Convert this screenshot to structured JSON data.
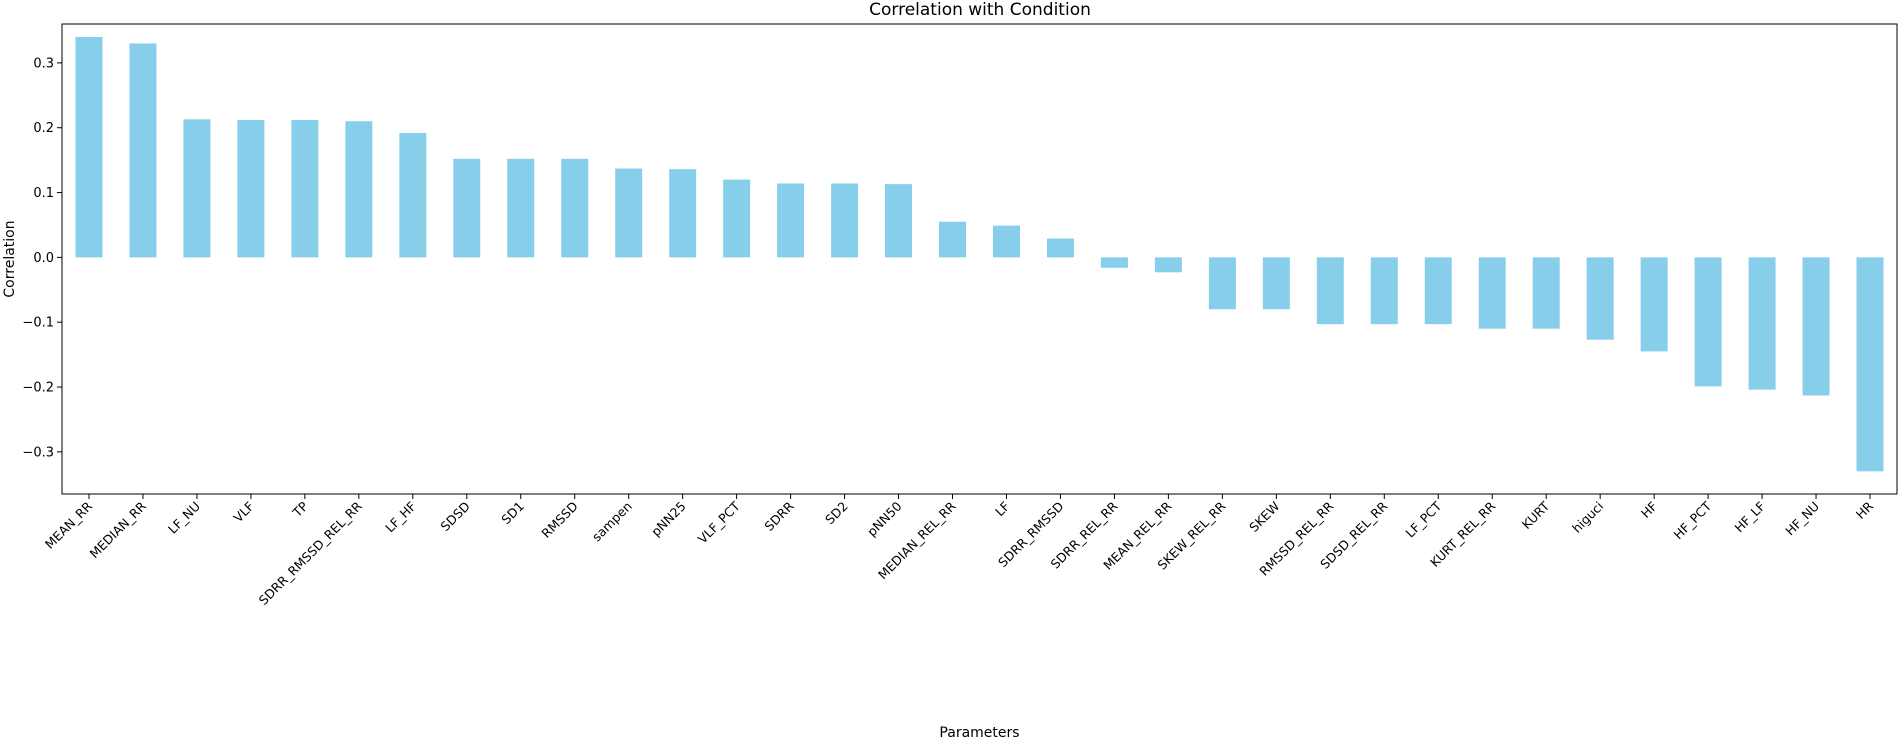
{
  "chart_data": {
    "type": "bar",
    "title": "Correlation with Condition",
    "xlabel": "Parameters",
    "ylabel": "Correlation",
    "ylim": [
      -0.365,
      0.36
    ],
    "yticks": [
      -0.3,
      -0.2,
      -0.1,
      0.0,
      0.1,
      0.2,
      0.3
    ],
    "ytick_labels": [
      "−0.3",
      "−0.2",
      "−0.1",
      "0.0",
      "0.1",
      "0.2",
      "0.3"
    ],
    "grid": false,
    "bar_color": "#87CEEB",
    "categories": [
      "MEAN_RR",
      "MEDIAN_RR",
      "LF_NU",
      "VLF",
      "TP",
      "SDRR_RMSSD_REL_RR",
      "LF_HF",
      "SDSD",
      "SD1",
      "RMSSD",
      "sampen",
      "pNN25",
      "VLF_PCT",
      "SDRR",
      "SD2",
      "pNN50",
      "MEDIAN_REL_RR",
      "LF",
      "SDRR_RMSSD",
      "SDRR_REL_RR",
      "MEAN_REL_RR",
      "SKEW_REL_RR",
      "SKEW",
      "RMSSD_REL_RR",
      "SDSD_REL_RR",
      "LF_PCT",
      "KURT_REL_RR",
      "KURT",
      "higuci",
      "HF",
      "HF_PCT",
      "HF_LF",
      "HF_NU",
      "HR"
    ],
    "values": [
      0.34,
      0.33,
      0.213,
      0.212,
      0.212,
      0.21,
      0.192,
      0.152,
      0.152,
      0.152,
      0.137,
      0.136,
      0.12,
      0.114,
      0.114,
      0.113,
      0.055,
      0.049,
      0.029,
      -0.016,
      -0.023,
      -0.08,
      -0.08,
      -0.103,
      -0.103,
      -0.103,
      -0.11,
      -0.11,
      -0.127,
      -0.145,
      -0.199,
      -0.204,
      -0.213,
      -0.33
    ]
  }
}
